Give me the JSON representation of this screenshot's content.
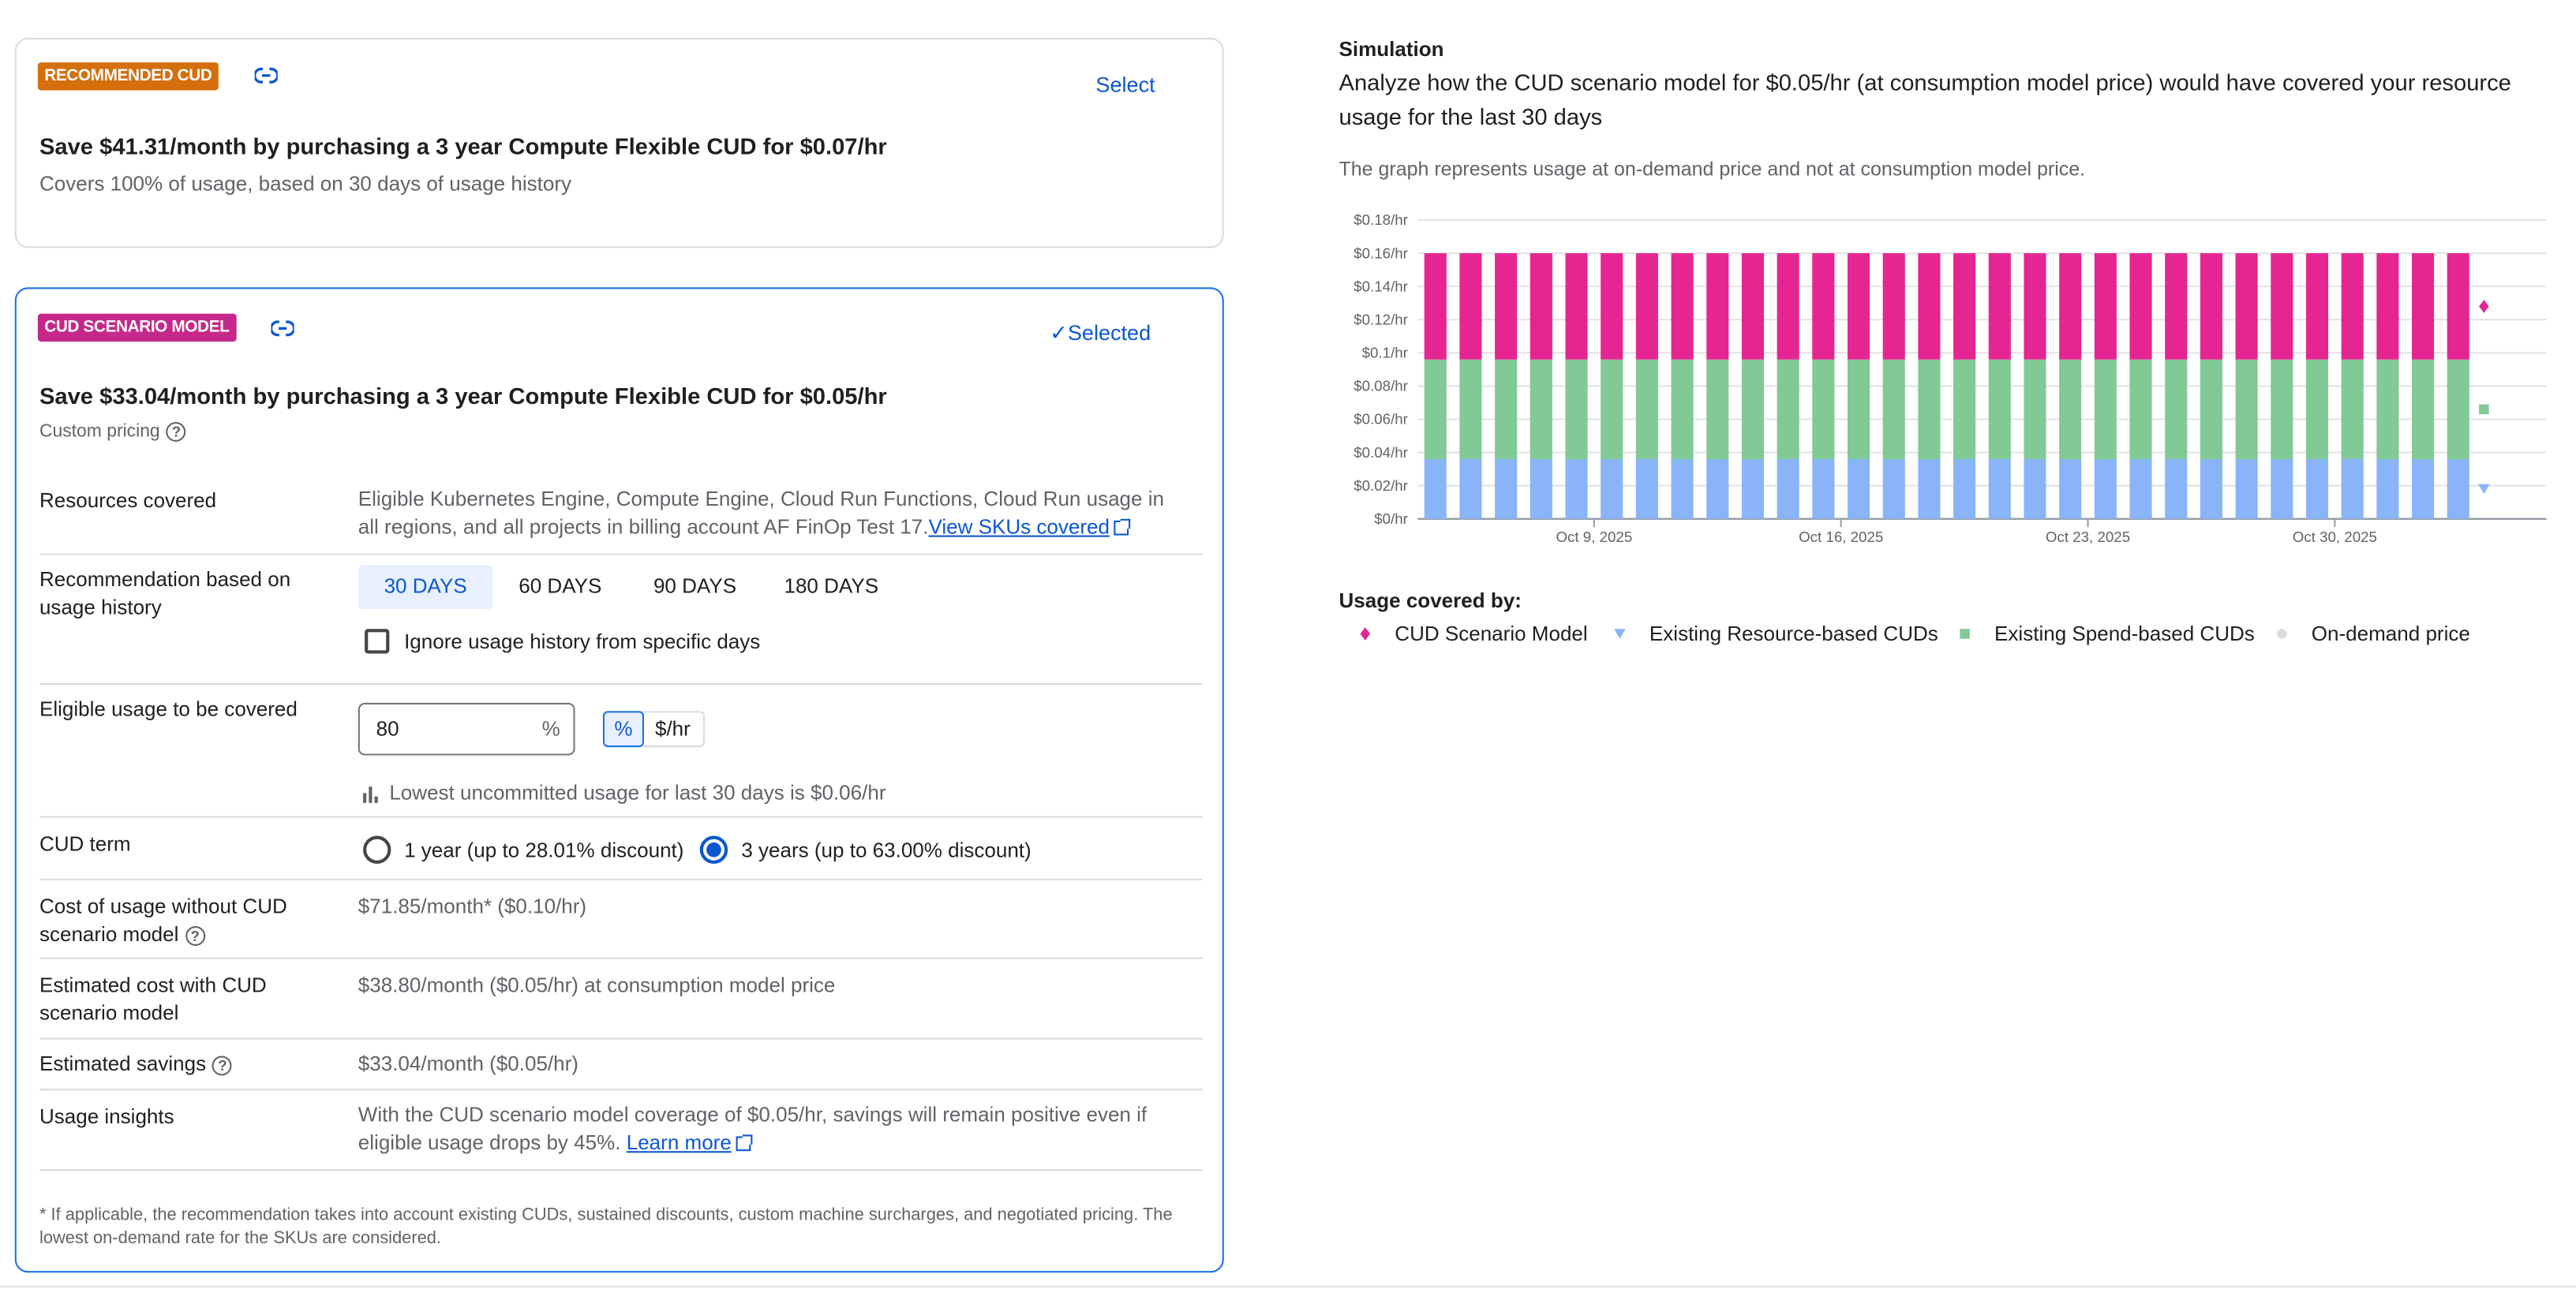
{
  "recommended_card": {
    "badge": "RECOMMENDED CUD",
    "badge_color": "#d56e0c",
    "select_label": "Select",
    "title": "Save $41.31/month by purchasing a 3 year Compute Flexible CUD for $0.07/hr",
    "subtitle": "Covers 100% of usage, based on 30 days of usage history"
  },
  "scenario_card": {
    "badge": "CUD SCENARIO MODEL",
    "badge_color": "#c5288a",
    "selected_label": "Selected",
    "title": "Save $33.04/month by purchasing a 3 year Compute Flexible CUD for $0.05/hr",
    "custom_pricing": "Custom pricing",
    "resources": {
      "label": "Resources covered",
      "value": "Eligible Kubernetes Engine, Compute Engine, Cloud Run Functions, Cloud Run usage in all regions, and all projects in billing account AF FinOp Test 17.",
      "link": "View SKUs covered"
    },
    "history": {
      "label": "Recommendation based on usage history",
      "options": [
        "30 DAYS",
        "60 DAYS",
        "90 DAYS",
        "180 DAYS"
      ],
      "selected": "30 DAYS",
      "ignore_label": "Ignore usage history from specific days",
      "ignore_checked": false
    },
    "eligible": {
      "label": "Eligible usage to be covered",
      "value": "80",
      "suffix": "%",
      "units": [
        "%",
        "$/hr"
      ],
      "selected_unit": "%",
      "hint": "Lowest uncommitted usage for last 30 days is $0.06/hr"
    },
    "term": {
      "label": "CUD term",
      "options": [
        "1 year (up to 28.01% discount)",
        "3 years (up to 63.00% discount)"
      ],
      "selected": "3 years (up to 63.00% discount)"
    },
    "cost_without": {
      "label": "Cost of usage without CUD scenario model",
      "value": "$71.85/month* ($0.10/hr)"
    },
    "cost_with": {
      "label": "Estimated cost with CUD scenario model",
      "value": "$38.80/month ($0.05/hr) at consumption model price"
    },
    "savings": {
      "label": "Estimated savings",
      "value": "$33.04/month ($0.05/hr)"
    },
    "insights": {
      "label": "Usage insights",
      "value": "With the CUD scenario model coverage of $0.05/hr, savings will remain positive even if eligible usage drops by 45%.",
      "link": "Learn more"
    },
    "footnote": "* If applicable, the recommendation takes into account existing CUDs, sustained discounts, custom machine surcharges, and negotiated pricing. The lowest on-demand rate for the SKUs are considered."
  },
  "simulation": {
    "heading": "Simulation",
    "description": "Analyze how the CUD scenario model for $0.05/hr (at consumption model price) would have covered your resource usage for the last 30 days",
    "note": "The graph represents usage at on-demand price and not at consumption model price.",
    "legend_title": "Usage covered by:"
  },
  "chart_data": {
    "type": "bar",
    "stacked": true,
    "x_start": "2025-10-04",
    "x": [
      "2025-10-04",
      "2025-10-05",
      "2025-10-06",
      "2025-10-07",
      "2025-10-08",
      "2025-10-09",
      "2025-10-10",
      "2025-10-11",
      "2025-10-12",
      "2025-10-13",
      "2025-10-14",
      "2025-10-15",
      "2025-10-16",
      "2025-10-17",
      "2025-10-18",
      "2025-10-19",
      "2025-10-20",
      "2025-10-21",
      "2025-10-22",
      "2025-10-23",
      "2025-10-24",
      "2025-10-25",
      "2025-10-26",
      "2025-10-27",
      "2025-10-28",
      "2025-10-29",
      "2025-10-30",
      "2025-10-31",
      "2025-11-01",
      "2025-11-02"
    ],
    "xlim": [
      "2025-10-04",
      "2025-11-05"
    ],
    "x_ticks": [
      {
        "date": "2025-10-09",
        "label": "Oct 9, 2025"
      },
      {
        "date": "2025-10-16",
        "label": "Oct 16, 2025"
      },
      {
        "date": "2025-10-23",
        "label": "Oct 23, 2025"
      },
      {
        "date": "2025-10-30",
        "label": "Oct 30, 2025"
      }
    ],
    "ylim": [
      0,
      0.18
    ],
    "y_ticks": [
      0,
      0.02,
      0.04,
      0.06,
      0.08,
      0.1,
      0.12,
      0.14,
      0.16,
      0.18
    ],
    "y_tick_labels": [
      "$0/hr",
      "$0.02/hr",
      "$0.04/hr",
      "$0.06/hr",
      "$0.08/hr",
      "$0.1/hr",
      "$0.12/hr",
      "$0.14/hr",
      "$0.16/hr",
      "$0.18/hr"
    ],
    "grid": true,
    "legend_placement": "bottom-left",
    "series": [
      {
        "name": "Existing Resource-based CUDs",
        "color": "#8ab4f8",
        "marker": "triangle",
        "value_each_day": 0.036
      },
      {
        "name": "Existing Spend-based CUDs",
        "color": "#81c995",
        "marker": "square",
        "value_each_day": 0.06
      },
      {
        "name": "CUD Scenario Model",
        "color": "#e52592",
        "marker": "diamond",
        "value_each_day": 0.064
      },
      {
        "name": "On-demand price",
        "color": "#dadce0",
        "marker": "circle",
        "value_each_day": 0
      }
    ],
    "legend_order": [
      "CUD Scenario Model",
      "Existing Resource-based CUDs",
      "Existing Spend-based CUDs",
      "On-demand price"
    ]
  }
}
